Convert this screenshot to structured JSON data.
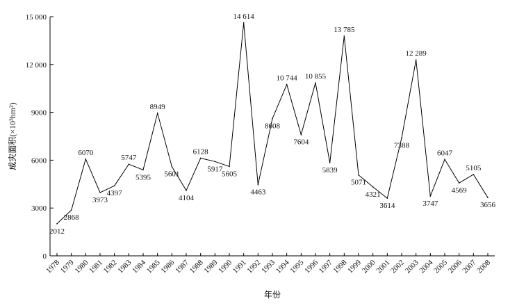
{
  "chart_data": {
    "type": "line",
    "title": "",
    "xlabel": "年份",
    "ylabel": "成灾面积(×10³hm²)",
    "ylim": [
      0,
      15000
    ],
    "yticks": [
      0,
      3000,
      6000,
      9000,
      12000,
      15000
    ],
    "ytick_labels": [
      "0",
      "3000",
      "6000",
      "9000",
      "12 000",
      "15 000"
    ],
    "grid": false,
    "categories": [
      "1978",
      "1979",
      "1980",
      "1981",
      "1982",
      "1983",
      "1984",
      "1985",
      "1986",
      "1987",
      "1988",
      "1989",
      "1990",
      "1991",
      "1992",
      "1993",
      "1994",
      "1995",
      "1996",
      "1997",
      "1998",
      "1999",
      "2000",
      "2001",
      "2002",
      "2003",
      "2004",
      "2005",
      "2006",
      "2007",
      "2008"
    ],
    "series": [
      {
        "name": "",
        "color": "#000000",
        "values": [
          2012,
          2868,
          6070,
          3973,
          4397,
          5747,
          5395,
          8949,
          5601,
          4104,
          6128,
          5917,
          5605,
          14614,
          4463,
          8608,
          10744,
          7604,
          10855,
          5839,
          13785,
          5071,
          4321,
          3614,
          7388,
          12289,
          3747,
          6047,
          4569,
          5105,
          3656
        ],
        "labels": [
          "2012",
          "2868",
          "6070",
          "3973",
          "4397",
          "5747",
          "5395",
          "8949",
          "5601",
          "4104",
          "6128",
          "5917",
          "5605",
          "14 614",
          "4463",
          "8608",
          "10 744",
          "7604",
          "10 855",
          "5839",
          "13 785",
          "5071",
          "4321",
          "3614",
          "7388",
          "12 289",
          "3747",
          "6047",
          "4569",
          "5105",
          "3656"
        ]
      }
    ]
  }
}
